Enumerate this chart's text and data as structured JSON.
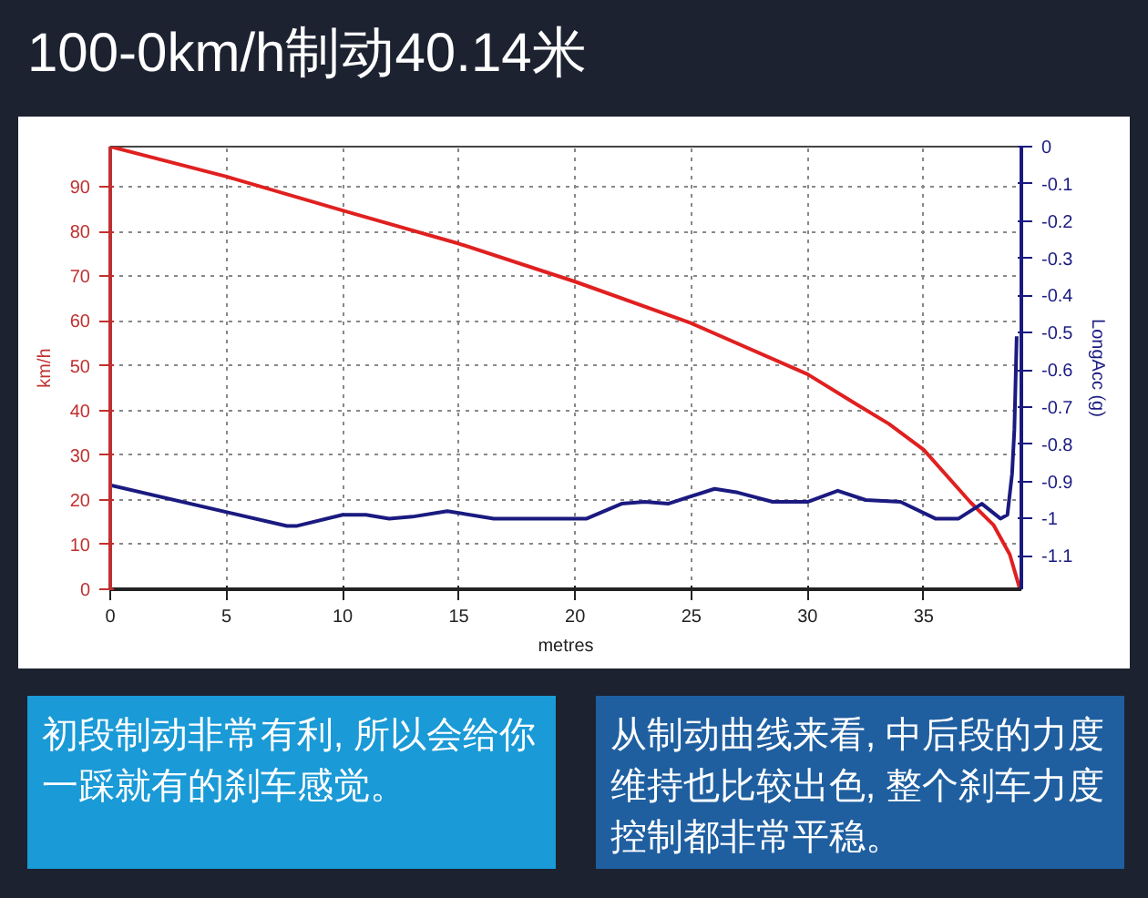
{
  "chart_data": {
    "type": "line",
    "title": "100-0km/h制动40.14米",
    "xlabel": "metres",
    "ylabel": "km/h",
    "y2label": "LongAcc (g)",
    "xlim": [
      0,
      39.2
    ],
    "xticks": [
      0,
      5,
      10,
      15,
      20,
      25,
      30,
      35
    ],
    "ylim": [
      0,
      99
    ],
    "yticks": [
      0,
      10,
      20,
      30,
      40,
      50,
      60,
      70,
      80,
      90
    ],
    "y2lim": [
      -1.19,
      0
    ],
    "y2ticks": [
      0,
      -0.1,
      -0.2,
      -0.3,
      -0.4,
      -0.5,
      -0.6,
      -0.7,
      -0.8,
      -0.9,
      -1,
      -1.1
    ],
    "grid": true,
    "series": [
      {
        "color": "#e02020",
        "x": [
          0,
          5,
          10,
          15,
          20,
          25,
          30,
          32,
          33.5,
          35,
          37,
          38,
          38.7,
          39.14
        ],
        "values": [
          99,
          92.3,
          84.7,
          77.3,
          68.8,
          59.5,
          48.1,
          41.7,
          37,
          31.2,
          19.5,
          14.4,
          7.8,
          0
        ]
      },
      {
        "color": "#1a1a80",
        "axis": "y2",
        "x": [
          0,
          7.6,
          8,
          10,
          11,
          12,
          13,
          14.5,
          16.5,
          20,
          20.5,
          22,
          23,
          24,
          26,
          27,
          28.5,
          30,
          31.3,
          32.5,
          34,
          35.5,
          36.5,
          37.5,
          38.3,
          38.6,
          38.8,
          38.9,
          39.0
        ],
        "values": [
          -0.91,
          -1.02,
          -1.02,
          -0.99,
          -0.99,
          -1.0,
          -0.995,
          -0.98,
          -1.0,
          -1.0,
          -1.0,
          -0.96,
          -0.955,
          -0.96,
          -0.92,
          -0.93,
          -0.955,
          -0.955,
          -0.925,
          -0.95,
          -0.955,
          -1.0,
          -1.0,
          -0.96,
          -1.0,
          -0.99,
          -0.88,
          -0.76,
          -0.51
        ]
      }
    ],
    "annotations": [
      "初段制动非常有利, 所以会给你一踩就有的刹车感觉。",
      "从制动曲线来看, 中后段的力度维持也比较出色, 整个刹车力度控制都非常平稳。"
    ]
  }
}
